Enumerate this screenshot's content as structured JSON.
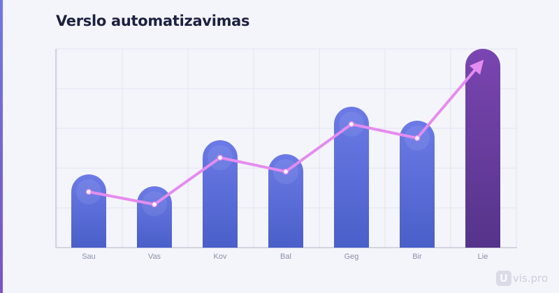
{
  "title": "Verslo automatizavimas",
  "watermark": {
    "icon": "U",
    "text": "vis.pro"
  },
  "colors": {
    "bar_top": "#6b7ae6",
    "bar_bottom": "#4a5fc9",
    "highlight_top": "#7a45b0",
    "highlight_bottom": "#55348a",
    "line": "#e58cf0",
    "marker": "#ffffff",
    "grid": "#e2e4ef",
    "axis": "#c6c9d8"
  },
  "chart_data": {
    "type": "bar",
    "title": "Verslo automatizavimas",
    "categories": [
      "Sau",
      "Vas",
      "Kov",
      "Bal",
      "Geg",
      "Bir",
      "Lie"
    ],
    "series": [
      {
        "type": "bar",
        "values": [
          105,
          88,
          154,
          134,
          202,
          182,
          285
        ]
      },
      {
        "type": "line",
        "values": [
          80,
          62,
          129,
          109,
          177,
          157,
          268
        ]
      }
    ],
    "highlight_index": 6,
    "ylim": [
      0,
      285
    ],
    "grid": true,
    "xlabel": "",
    "ylabel": ""
  }
}
